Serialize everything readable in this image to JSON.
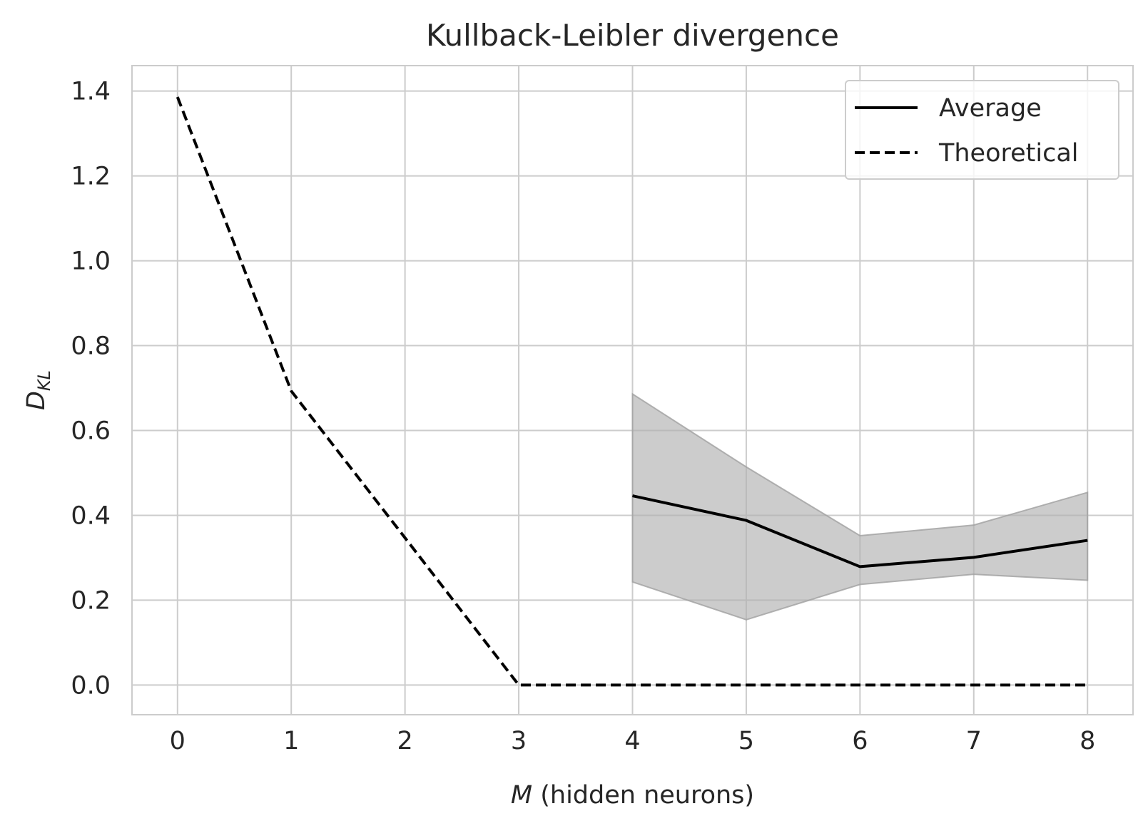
{
  "chart_data": {
    "type": "line",
    "title": "Kullback-Leibler divergence",
    "xlabel": {
      "var": "M",
      "rest": " (hidden neurons)"
    },
    "ylabel": {
      "main": "D",
      "sub": "KL"
    },
    "xlim": [
      -0.4,
      8.4
    ],
    "ylim": [
      -0.07,
      1.46
    ],
    "xticks": [
      0,
      1,
      2,
      3,
      4,
      5,
      6,
      7,
      8
    ],
    "xtick_labels": [
      "0",
      "1",
      "2",
      "3",
      "4",
      "5",
      "6",
      "7",
      "8"
    ],
    "yticks": [
      0.0,
      0.2,
      0.4,
      0.6,
      0.8,
      1.0,
      1.2,
      1.4
    ],
    "ytick_labels": [
      "0.0",
      "0.2",
      "0.4",
      "0.6",
      "0.8",
      "1.0",
      "1.2",
      "1.4"
    ],
    "grid": true,
    "legend_position": "top-right",
    "series": [
      {
        "name": "Average",
        "style": "solid",
        "color": "#000000",
        "x": [
          4,
          5,
          6,
          7,
          8
        ],
        "y": [
          0.446,
          0.388,
          0.279,
          0.301,
          0.341
        ],
        "band_upper": [
          0.686,
          0.514,
          0.352,
          0.377,
          0.454
        ],
        "band_lower": [
          0.243,
          0.154,
          0.237,
          0.261,
          0.247
        ],
        "band_color": "#b0b0b0"
      },
      {
        "name": "Theoretical",
        "style": "dashed",
        "color": "#000000",
        "x": [
          0,
          1,
          2,
          3,
          4,
          5,
          6,
          7,
          8
        ],
        "y": [
          1.386,
          0.693,
          0.347,
          0.0,
          0.0,
          0.0,
          0.0,
          0.0,
          0.0
        ]
      }
    ]
  }
}
